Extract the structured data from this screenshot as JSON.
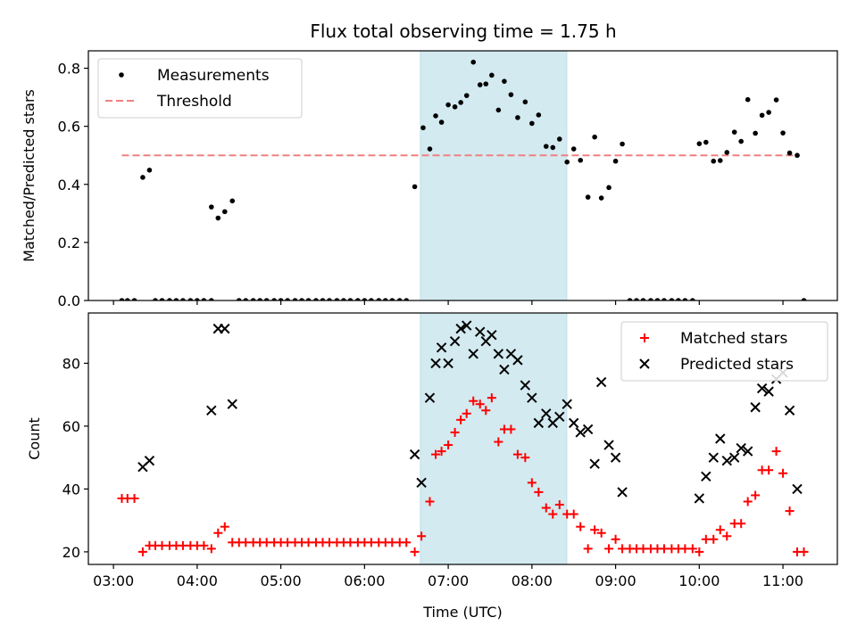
{
  "title": "Flux total observing time = 1.75 h",
  "chart_data": [
    {
      "type": "scatter",
      "ylabel": "Matched/Predicted stars",
      "xlim": [
        2.7,
        11.65
      ],
      "ylim": [
        0,
        0.86
      ],
      "yticks": [
        0.0,
        0.2,
        0.4,
        0.6,
        0.8
      ],
      "ytick_labels": [
        "0.0",
        "0.2",
        "0.4",
        "0.6",
        "0.8"
      ],
      "legend_position": "top-left",
      "highlight_band": {
        "x_start": 6.667,
        "x_end": 8.417,
        "color": "#d3eaf0"
      },
      "threshold": {
        "name": "Threshold",
        "value": 0.5,
        "x_start": 3.1,
        "x_end": 11.2,
        "color": "#f08080"
      },
      "series": [
        {
          "name": "Measurements",
          "marker": "dot",
          "color": "#000000",
          "points": [
            [
              3.1,
              0
            ],
            [
              3.167,
              0
            ],
            [
              3.25,
              0
            ],
            [
              3.35,
              0.424
            ],
            [
              3.43,
              0.449
            ],
            [
              3.5,
              0
            ],
            [
              3.58,
              0
            ],
            [
              3.67,
              0
            ],
            [
              3.75,
              0
            ],
            [
              3.83,
              0
            ],
            [
              3.92,
              0
            ],
            [
              4.0,
              0
            ],
            [
              4.08,
              0
            ],
            [
              4.17,
              0
            ],
            [
              4.17,
              0.322
            ],
            [
              4.25,
              0.284
            ],
            [
              4.33,
              0.306
            ],
            [
              4.42,
              0.343
            ],
            [
              4.5,
              0
            ],
            [
              4.58,
              0
            ],
            [
              4.67,
              0
            ],
            [
              4.75,
              0
            ],
            [
              4.83,
              0
            ],
            [
              4.92,
              0
            ],
            [
              5.0,
              0
            ],
            [
              5.08,
              0
            ],
            [
              5.17,
              0
            ],
            [
              5.25,
              0
            ],
            [
              5.33,
              0
            ],
            [
              5.42,
              0
            ],
            [
              5.5,
              0
            ],
            [
              5.58,
              0
            ],
            [
              5.67,
              0
            ],
            [
              5.75,
              0
            ],
            [
              5.83,
              0
            ],
            [
              5.92,
              0
            ],
            [
              6.0,
              0
            ],
            [
              6.08,
              0
            ],
            [
              6.17,
              0
            ],
            [
              6.25,
              0
            ],
            [
              6.33,
              0
            ],
            [
              6.42,
              0
            ],
            [
              6.5,
              0
            ],
            [
              6.6,
              0.392
            ],
            [
              6.7,
              0.595
            ],
            [
              6.78,
              0.522
            ],
            [
              6.85,
              0.636
            ],
            [
              6.92,
              0.614
            ],
            [
              7.0,
              0.674
            ],
            [
              7.08,
              0.667
            ],
            [
              7.15,
              0.682
            ],
            [
              7.22,
              0.706
            ],
            [
              7.3,
              0.821
            ],
            [
              7.38,
              0.743
            ],
            [
              7.45,
              0.746
            ],
            [
              7.52,
              0.776
            ],
            [
              7.6,
              0.656
            ],
            [
              7.67,
              0.755
            ],
            [
              7.75,
              0.709
            ],
            [
              7.83,
              0.63
            ],
            [
              7.92,
              0.684
            ],
            [
              8.0,
              0.61
            ],
            [
              8.08,
              0.639
            ],
            [
              8.17,
              0.531
            ],
            [
              8.25,
              0.527
            ],
            [
              8.33,
              0.556
            ],
            [
              8.42,
              0.477
            ],
            [
              8.5,
              0.522
            ],
            [
              8.58,
              0.483
            ],
            [
              8.67,
              0.356
            ],
            [
              8.75,
              0.563
            ],
            [
              8.83,
              0.353
            ],
            [
              8.92,
              0.389
            ],
            [
              9.0,
              0.48
            ],
            [
              9.08,
              0.539
            ],
            [
              9.17,
              0
            ],
            [
              9.25,
              0
            ],
            [
              9.33,
              0
            ],
            [
              9.42,
              0
            ],
            [
              9.5,
              0
            ],
            [
              9.58,
              0
            ],
            [
              9.67,
              0
            ],
            [
              9.75,
              0
            ],
            [
              9.83,
              0
            ],
            [
              9.92,
              0
            ],
            [
              10.0,
              0.54
            ],
            [
              10.08,
              0.545
            ],
            [
              10.17,
              0.48
            ],
            [
              10.25,
              0.482
            ],
            [
              10.33,
              0.51
            ],
            [
              10.42,
              0.58
            ],
            [
              10.5,
              0.548
            ],
            [
              10.58,
              0.692
            ],
            [
              10.67,
              0.576
            ],
            [
              10.75,
              0.638
            ],
            [
              10.83,
              0.648
            ],
            [
              10.92,
              0.691
            ],
            [
              11.0,
              0.577
            ],
            [
              11.08,
              0.508
            ],
            [
              11.17,
              0.5
            ],
            [
              11.25,
              0
            ]
          ]
        }
      ]
    },
    {
      "type": "scatter",
      "ylabel": "Count",
      "xlabel": "Time (UTC)",
      "xlim": [
        2.7,
        11.65
      ],
      "ylim": [
        16,
        96
      ],
      "yticks": [
        20,
        40,
        60,
        80
      ],
      "ytick_labels": [
        "20",
        "40",
        "60",
        "80"
      ],
      "xticks": [
        3,
        4,
        5,
        6,
        7,
        8,
        9,
        10,
        11
      ],
      "xtick_labels": [
        "03:00",
        "04:00",
        "05:00",
        "06:00",
        "07:00",
        "08:00",
        "09:00",
        "10:00",
        "11:00"
      ],
      "legend_position": "top-right",
      "highlight_band": {
        "x_start": 6.667,
        "x_end": 8.417,
        "color": "#d3eaf0"
      },
      "series": [
        {
          "name": "Matched stars",
          "marker": "plus",
          "color": "#ff0000",
          "points": [
            [
              3.1,
              37
            ],
            [
              3.167,
              37
            ],
            [
              3.25,
              37
            ],
            [
              3.35,
              20
            ],
            [
              3.43,
              22
            ],
            [
              3.5,
              22
            ],
            [
              3.58,
              22
            ],
            [
              3.67,
              22
            ],
            [
              3.75,
              22
            ],
            [
              3.83,
              22
            ],
            [
              3.92,
              22
            ],
            [
              4.0,
              22
            ],
            [
              4.08,
              22
            ],
            [
              4.17,
              21
            ],
            [
              4.25,
              26
            ],
            [
              4.33,
              28
            ],
            [
              4.42,
              23
            ],
            [
              4.5,
              23
            ],
            [
              4.58,
              23
            ],
            [
              4.67,
              23
            ],
            [
              4.75,
              23
            ],
            [
              4.83,
              23
            ],
            [
              4.92,
              23
            ],
            [
              5.0,
              23
            ],
            [
              5.08,
              23
            ],
            [
              5.17,
              23
            ],
            [
              5.25,
              23
            ],
            [
              5.33,
              23
            ],
            [
              5.42,
              23
            ],
            [
              5.5,
              23
            ],
            [
              5.58,
              23
            ],
            [
              5.67,
              23
            ],
            [
              5.75,
              23
            ],
            [
              5.83,
              23
            ],
            [
              5.92,
              23
            ],
            [
              6.0,
              23
            ],
            [
              6.08,
              23
            ],
            [
              6.17,
              23
            ],
            [
              6.25,
              23
            ],
            [
              6.33,
              23
            ],
            [
              6.42,
              23
            ],
            [
              6.5,
              23
            ],
            [
              6.6,
              20
            ],
            [
              6.68,
              25
            ],
            [
              6.78,
              36
            ],
            [
              6.85,
              51
            ],
            [
              6.92,
              52
            ],
            [
              7.0,
              54
            ],
            [
              7.08,
              58
            ],
            [
              7.15,
              62
            ],
            [
              7.22,
              64
            ],
            [
              7.3,
              68
            ],
            [
              7.38,
              67
            ],
            [
              7.45,
              65
            ],
            [
              7.52,
              69
            ],
            [
              7.6,
              55
            ],
            [
              7.67,
              59
            ],
            [
              7.75,
              59
            ],
            [
              7.83,
              51
            ],
            [
              7.92,
              50
            ],
            [
              8.0,
              42
            ],
            [
              8.08,
              39
            ],
            [
              8.17,
              34
            ],
            [
              8.25,
              32
            ],
            [
              8.33,
              35
            ],
            [
              8.42,
              32
            ],
            [
              8.5,
              32
            ],
            [
              8.58,
              28
            ],
            [
              8.67,
              21
            ],
            [
              8.75,
              27
            ],
            [
              8.83,
              26
            ],
            [
              8.92,
              21
            ],
            [
              9.0,
              24
            ],
            [
              9.08,
              21
            ],
            [
              9.17,
              21
            ],
            [
              9.25,
              21
            ],
            [
              9.33,
              21
            ],
            [
              9.42,
              21
            ],
            [
              9.5,
              21
            ],
            [
              9.58,
              21
            ],
            [
              9.67,
              21
            ],
            [
              9.75,
              21
            ],
            [
              9.83,
              21
            ],
            [
              9.92,
              21
            ],
            [
              10.0,
              20
            ],
            [
              10.08,
              24
            ],
            [
              10.17,
              24
            ],
            [
              10.25,
              27
            ],
            [
              10.33,
              25
            ],
            [
              10.42,
              29
            ],
            [
              10.5,
              29
            ],
            [
              10.58,
              36
            ],
            [
              10.67,
              38
            ],
            [
              10.75,
              46
            ],
            [
              10.83,
              46
            ],
            [
              10.92,
              52
            ],
            [
              11.0,
              45
            ],
            [
              11.08,
              33
            ],
            [
              11.17,
              20
            ],
            [
              11.25,
              20
            ]
          ]
        },
        {
          "name": "Predicted stars",
          "marker": "x",
          "color": "#000000",
          "points": [
            [
              3.35,
              47
            ],
            [
              3.43,
              49
            ],
            [
              4.17,
              65
            ],
            [
              4.25,
              91
            ],
            [
              4.33,
              91
            ],
            [
              4.42,
              67
            ],
            [
              6.6,
              51
            ],
            [
              6.68,
              42
            ],
            [
              6.78,
              69
            ],
            [
              6.85,
              80
            ],
            [
              6.92,
              85
            ],
            [
              7.0,
              80
            ],
            [
              7.08,
              87
            ],
            [
              7.15,
              91
            ],
            [
              7.22,
              92
            ],
            [
              7.3,
              83
            ],
            [
              7.38,
              90
            ],
            [
              7.45,
              87
            ],
            [
              7.52,
              89
            ],
            [
              7.6,
              83
            ],
            [
              7.67,
              78
            ],
            [
              7.75,
              83
            ],
            [
              7.83,
              81
            ],
            [
              7.92,
              73
            ],
            [
              8.0,
              69
            ],
            [
              8.08,
              61
            ],
            [
              8.17,
              64
            ],
            [
              8.25,
              61
            ],
            [
              8.33,
              63
            ],
            [
              8.42,
              67
            ],
            [
              8.5,
              61
            ],
            [
              8.58,
              58
            ],
            [
              8.67,
              59
            ],
            [
              8.75,
              48
            ],
            [
              8.83,
              74
            ],
            [
              8.92,
              54
            ],
            [
              9.0,
              50
            ],
            [
              9.08,
              39
            ],
            [
              10.0,
              37
            ],
            [
              10.08,
              44
            ],
            [
              10.17,
              50
            ],
            [
              10.25,
              56
            ],
            [
              10.33,
              49
            ],
            [
              10.42,
              50
            ],
            [
              10.5,
              53
            ],
            [
              10.58,
              52
            ],
            [
              10.67,
              66
            ],
            [
              10.75,
              72
            ],
            [
              10.83,
              71
            ],
            [
              10.92,
              75
            ],
            [
              11.0,
              77
            ],
            [
              11.08,
              65
            ],
            [
              11.17,
              40
            ]
          ]
        }
      ]
    }
  ]
}
